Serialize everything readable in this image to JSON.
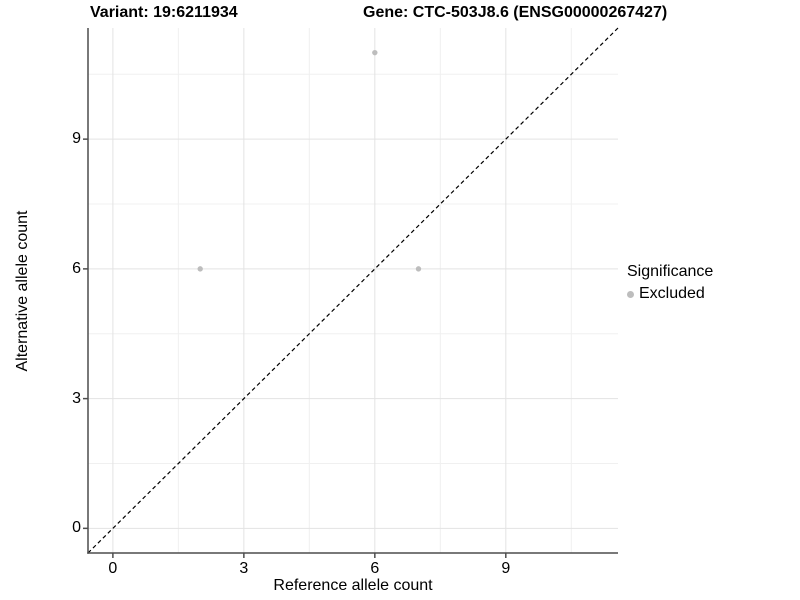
{
  "header": {
    "variant_title": "Variant: 19:6211934",
    "gene_title": "Gene: CTC-503J8.6 (ENSG00000267427)"
  },
  "chart_data": {
    "type": "scatter",
    "xlabel": "Reference allele count",
    "ylabel": "Alternative allele count",
    "xlim": [
      -0.57,
      11.57
    ],
    "ylim": [
      -0.57,
      11.57
    ],
    "x_ticks": [
      0,
      3,
      6,
      9
    ],
    "y_ticks": [
      0,
      3,
      6,
      9
    ],
    "minor_ticks": [
      1.5,
      4.5,
      7.5,
      10.5
    ],
    "grid": "major-and-minor",
    "reference_line": {
      "type": "y=x identity",
      "style": "dashed",
      "color": "#000000"
    },
    "series": [
      {
        "name": "Excluded",
        "color": "#bdbdbd",
        "points": [
          {
            "x": 2,
            "y": 6
          },
          {
            "x": 6,
            "y": 11
          },
          {
            "x": 7,
            "y": 6
          }
        ]
      }
    ],
    "legend": {
      "position": "right",
      "title": "Significance",
      "items": [
        {
          "label": "Excluded",
          "color": "#bdbdbd"
        }
      ]
    }
  },
  "style_colors": {
    "background": "#ffffff",
    "panel_background": "#ffffff",
    "grid_major": "#e3e3e3",
    "grid_minor": "#f0f0f0",
    "axis_line": "#4d4d4d",
    "point_fill": "#bdbdbd",
    "text": "#000000"
  }
}
